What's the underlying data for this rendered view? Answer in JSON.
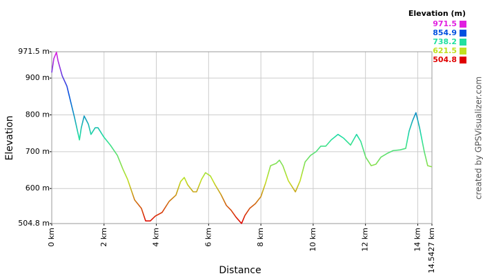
{
  "chart_data": {
    "type": "line",
    "x_label": "Distance",
    "y_label": "Elevation",
    "legend_title": "Elevation (m)",
    "credit": "created by GPSVisualizer.com",
    "color_scale": [
      {
        "value": 971.5,
        "color": "#e020e0"
      },
      {
        "value": 854.9,
        "color": "#0050e0"
      },
      {
        "value": 738.2,
        "color": "#20e0a0"
      },
      {
        "value": 621.5,
        "color": "#c0e020"
      },
      {
        "value": 504.8,
        "color": "#e00000"
      }
    ],
    "x": [
      0,
      0.08,
      0.18,
      0.24,
      0.4,
      0.58,
      0.74,
      0.87,
      1.06,
      1.13,
      1.24,
      1.4,
      1.5,
      1.66,
      1.77,
      1.98,
      2.24,
      2.51,
      2.72,
      2.9,
      3.17,
      3.43,
      3.59,
      3.77,
      3.96,
      4.22,
      4.49,
      4.75,
      4.93,
      5.07,
      5.2,
      5.41,
      5.54,
      5.73,
      5.88,
      6.07,
      6.25,
      6.47,
      6.68,
      6.86,
      7.05,
      7.26,
      7.39,
      7.57,
      7.79,
      8.0,
      8.18,
      8.37,
      8.58,
      8.71,
      8.84,
      9.05,
      9.32,
      9.5,
      9.69,
      9.9,
      10.11,
      10.29,
      10.48,
      10.69,
      10.95,
      11.16,
      11.43,
      11.66,
      11.82,
      12.01,
      12.22,
      12.4,
      12.59,
      12.85,
      13.06,
      13.33,
      13.54,
      13.67,
      13.8,
      13.93,
      14.07,
      14.25,
      14.38,
      14.54
    ],
    "values": [
      915,
      953,
      970,
      947,
      906,
      878,
      831,
      793,
      732,
      765,
      797,
      775,
      747,
      765,
      765,
      741,
      718,
      690,
      653,
      625,
      569,
      546,
      512,
      512,
      525,
      535,
      565,
      582,
      619,
      630,
      610,
      591,
      591,
      625,
      643,
      634,
      610,
      584,
      554,
      541,
      522,
      505,
      527,
      546,
      559,
      578,
      615,
      662,
      668,
      677,
      662,
      621,
      591,
      621,
      672,
      690,
      700,
      715,
      715,
      732,
      747,
      737,
      718,
      747,
      728,
      685,
      662,
      666,
      685,
      696,
      703,
      705,
      709,
      756,
      784,
      806,
      765,
      700,
      662,
      659
    ],
    "xlim": [
      0,
      14.5427
    ],
    "ylim": [
      504.8,
      971.5
    ],
    "xticks": [
      {
        "value": 0,
        "label": "0 km"
      },
      {
        "value": 2,
        "label": "2 km"
      },
      {
        "value": 4,
        "label": "4 km"
      },
      {
        "value": 6,
        "label": "6 km"
      },
      {
        "value": 8,
        "label": "8 km"
      },
      {
        "value": 10,
        "label": "10 km"
      },
      {
        "value": 12,
        "label": "12 km"
      },
      {
        "value": 14,
        "label": "14 km"
      },
      {
        "value": 14.5427,
        "label": "14.5427 km"
      }
    ],
    "yticks": [
      {
        "value": 504.8,
        "label": "504.8 m"
      },
      {
        "value": 600,
        "label": "600 m"
      },
      {
        "value": 700,
        "label": "700 m"
      },
      {
        "value": 800,
        "label": "800 m"
      },
      {
        "value": 900,
        "label": "900 m"
      },
      {
        "value": 971.5,
        "label": "971.5 m"
      }
    ],
    "grid": true
  }
}
